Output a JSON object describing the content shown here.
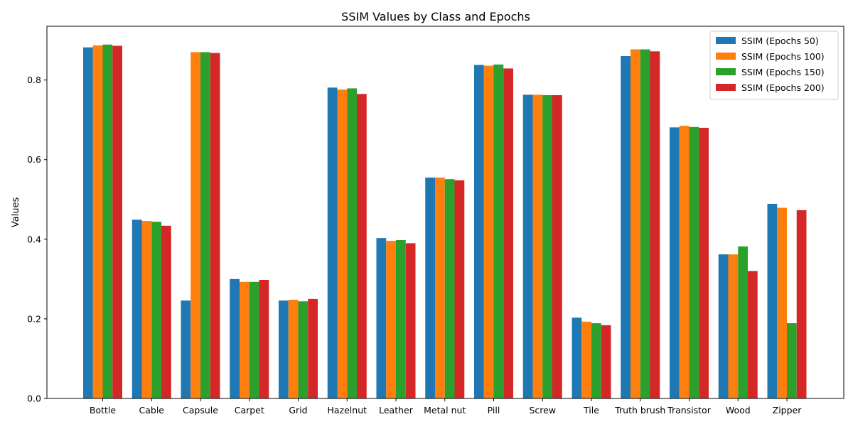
{
  "chart_data": {
    "type": "bar",
    "title": "SSIM Values by Class and Epochs",
    "xlabel": "",
    "ylabel": "Values",
    "ylim": [
      0,
      0.935
    ],
    "yticks": [
      0.0,
      0.2,
      0.4,
      0.6,
      0.8
    ],
    "ytick_labels": [
      "0.0",
      "0.2",
      "0.4",
      "0.6",
      "0.8"
    ],
    "grid": false,
    "legend_position": "top-right",
    "categories": [
      "Bottle",
      "Cable",
      "Capsule",
      "Carpet",
      "Grid",
      "Hazelnut",
      "Leather",
      "Metal nut",
      "Pill",
      "Screw",
      "Tile",
      "Truth brush",
      "Transistor",
      "Wood",
      "Zipper"
    ],
    "series": [
      {
        "name": "SSIM (Epochs 50)",
        "color": "#1f77b4",
        "values": [
          0.882,
          0.449,
          0.246,
          0.3,
          0.246,
          0.781,
          0.403,
          0.555,
          0.838,
          0.763,
          0.203,
          0.86,
          0.681,
          0.362,
          0.489
        ]
      },
      {
        "name": "SSIM (Epochs 100)",
        "color": "#ff7f0e",
        "values": [
          0.887,
          0.446,
          0.87,
          0.293,
          0.248,
          0.776,
          0.396,
          0.555,
          0.836,
          0.763,
          0.193,
          0.877,
          0.685,
          0.362,
          0.479
        ]
      },
      {
        "name": "SSIM (Epochs 150)",
        "color": "#2ca02c",
        "values": [
          0.889,
          0.444,
          0.87,
          0.293,
          0.244,
          0.779,
          0.398,
          0.551,
          0.839,
          0.762,
          0.189,
          0.877,
          0.682,
          0.382,
          0.189
        ]
      },
      {
        "name": "SSIM (Epochs 200)",
        "color": "#d62728",
        "values": [
          0.886,
          0.434,
          0.868,
          0.298,
          0.25,
          0.765,
          0.39,
          0.548,
          0.829,
          0.762,
          0.184,
          0.872,
          0.68,
          0.32,
          0.473
        ]
      }
    ]
  }
}
